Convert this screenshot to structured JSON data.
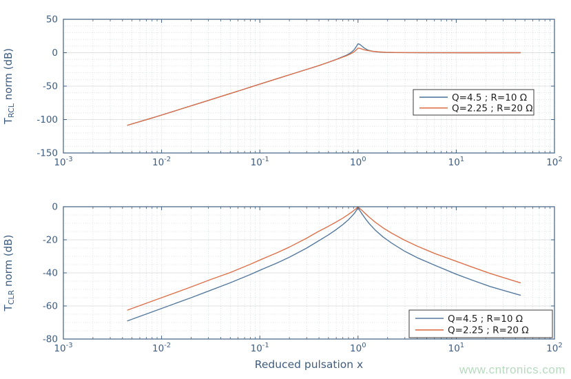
{
  "figure": {
    "watermark": "www.cntronics.com",
    "watermark_color": "#b6dabe"
  },
  "colors": {
    "axis": "#3f5e80",
    "tick_label": "#3d5c80",
    "legend_text": "#1e1e1e",
    "legend_border": "#3a3a3a",
    "grid_major": "rgba(60,60,60,0.16)",
    "grid_minor": "rgba(70,100,130,0.30)",
    "series_blue": "#53799f",
    "series_orange": "#dc7048"
  },
  "chart_data": [
    {
      "type": "line",
      "xscale": "log",
      "xlim": [
        0.001,
        100
      ],
      "ylim": [
        -150,
        50
      ],
      "yticks": [
        50,
        0,
        -50,
        -100,
        -150
      ],
      "ytick_labels": [
        "50",
        "0",
        "-50",
        "-100",
        "-150"
      ],
      "xtick_base": "10",
      "xtick_exponents": [
        "-3",
        "-2",
        "-1",
        "0",
        "1",
        "2"
      ],
      "grid": true,
      "minor_grid": true,
      "ylabel": {
        "pre": "T",
        "sub": "RCL",
        "post": " norm (dB)"
      },
      "xlabel": "",
      "legend": {
        "location": "southeast",
        "entries": [
          "Q=4.5 ; R=10 Ω",
          "Q=2.25 ; R=20 Ω"
        ]
      },
      "series": [
        {
          "name": "Q=4.5 ; R=10 Ω",
          "color": "#53799f",
          "points": [
            [
              0.0045,
              -108.5
            ],
            [
              0.007,
              -100.2
            ],
            [
              0.01,
              -93.3
            ],
            [
              0.015,
              -85.2
            ],
            [
              0.022,
              -77.5
            ],
            [
              0.032,
              -70.0
            ],
            [
              0.047,
              -62.3
            ],
            [
              0.068,
              -54.9
            ],
            [
              0.1,
              -47.0
            ],
            [
              0.15,
              -38.9
            ],
            [
              0.22,
              -31.2
            ],
            [
              0.32,
              -23.7
            ],
            [
              0.42,
              -18.2
            ],
            [
              0.52,
              -13.4
            ],
            [
              0.62,
              -9.2
            ],
            [
              0.7,
              -6.0
            ],
            [
              0.76,
              -3.8
            ],
            [
              0.82,
              -1.2
            ],
            [
              0.87,
              1.6
            ],
            [
              0.92,
              5.2
            ],
            [
              0.96,
              9.2
            ],
            [
              1.0,
              13.3
            ],
            [
              1.04,
              12.6
            ],
            [
              1.09,
              10.2
            ],
            [
              1.16,
              6.9
            ],
            [
              1.26,
              4.0
            ],
            [
              1.4,
              2.2
            ],
            [
              1.6,
              1.1
            ],
            [
              1.9,
              0.5
            ],
            [
              2.4,
              0.2
            ],
            [
              3.2,
              0.1
            ],
            [
              5,
              0
            ],
            [
              10,
              0
            ],
            [
              20,
              0
            ],
            [
              45,
              0
            ]
          ]
        },
        {
          "name": "Q=2.25 ; R=20 Ω",
          "color": "#dc7048",
          "points": [
            [
              0.0045,
              -108.5
            ],
            [
              0.007,
              -100.2
            ],
            [
              0.01,
              -93.3
            ],
            [
              0.015,
              -85.2
            ],
            [
              0.022,
              -77.5
            ],
            [
              0.032,
              -70.0
            ],
            [
              0.047,
              -62.3
            ],
            [
              0.068,
              -54.9
            ],
            [
              0.1,
              -47.0
            ],
            [
              0.15,
              -38.9
            ],
            [
              0.22,
              -31.2
            ],
            [
              0.32,
              -23.7
            ],
            [
              0.42,
              -18.2
            ],
            [
              0.52,
              -13.4
            ],
            [
              0.62,
              -9.5
            ],
            [
              0.7,
              -6.6
            ],
            [
              0.76,
              -4.6
            ],
            [
              0.82,
              -2.4
            ],
            [
              0.87,
              -0.6
            ],
            [
              0.92,
              1.8
            ],
            [
              0.96,
              4.3
            ],
            [
              1.0,
              6.9
            ],
            [
              1.05,
              6.4
            ],
            [
              1.12,
              5.0
            ],
            [
              1.22,
              3.6
            ],
            [
              1.38,
              2.2
            ],
            [
              1.6,
              1.3
            ],
            [
              1.9,
              0.7
            ],
            [
              2.4,
              0.35
            ],
            [
              3.2,
              0.15
            ],
            [
              5,
              0.05
            ],
            [
              10,
              0
            ],
            [
              20,
              0
            ],
            [
              45,
              0
            ]
          ]
        }
      ]
    },
    {
      "type": "line",
      "xscale": "log",
      "xlim": [
        0.001,
        100
      ],
      "ylim": [
        -80,
        0
      ],
      "yticks": [
        0,
        -20,
        -40,
        -60,
        -80
      ],
      "ytick_labels": [
        "0",
        "-20",
        "-40",
        "-60",
        "-80"
      ],
      "xtick_base": "10",
      "xtick_exponents": [
        "-3",
        "-2",
        "-1",
        "0",
        "1",
        "2"
      ],
      "grid": true,
      "minor_grid": true,
      "ylabel": {
        "pre": "T",
        "sub": "CLR",
        "post": " norm (dB)"
      },
      "xlabel": "Reduced pulsation x",
      "legend": {
        "location": "southeast",
        "entries": [
          "Q=4.5 ; R=10 Ω",
          "Q=2.25 ; R=20 Ω"
        ]
      },
      "series": [
        {
          "name": "Q=4.5 ; R=10 Ω",
          "color": "#53799f",
          "points": [
            [
              0.0045,
              -69.0
            ],
            [
              0.01,
              -61.5
            ],
            [
              0.02,
              -55.0
            ],
            [
              0.0316,
              -50.5
            ],
            [
              0.05,
              -46.0
            ],
            [
              0.08,
              -41.0
            ],
            [
              0.104,
              -38.0
            ],
            [
              0.15,
              -34.0
            ],
            [
              0.2,
              -30.5
            ],
            [
              0.3,
              -25.0
            ],
            [
              0.388,
              -21.0
            ],
            [
              0.5,
              -17.0
            ],
            [
              0.6,
              -13.8
            ],
            [
              0.7,
              -10.8
            ],
            [
              0.8,
              -7.8
            ],
            [
              0.9,
              -4.6
            ],
            [
              0.95,
              -2.8
            ],
            [
              1.0,
              -0.2
            ],
            [
              1.05,
              -2.6
            ],
            [
              1.1,
              -4.4
            ],
            [
              1.2,
              -7.6
            ],
            [
              1.3,
              -10.2
            ],
            [
              1.5,
              -14.2
            ],
            [
              1.8,
              -18.3
            ],
            [
              2.2,
              -22.0
            ],
            [
              3,
              -27.0
            ],
            [
              4,
              -30.8
            ],
            [
              6,
              -35.3
            ],
            [
              10,
              -40.8
            ],
            [
              15,
              -44.7
            ],
            [
              22,
              -48.2
            ],
            [
              32,
              -51.0
            ],
            [
              45,
              -53.5
            ]
          ]
        },
        {
          "name": "Q=2.25 ; R=20 Ω",
          "color": "#dc7048",
          "points": [
            [
              0.0045,
              -62.5
            ],
            [
              0.01,
              -55.0
            ],
            [
              0.02,
              -48.5
            ],
            [
              0.0316,
              -44.0
            ],
            [
              0.05,
              -39.8
            ],
            [
              0.08,
              -34.8
            ],
            [
              0.104,
              -31.8
            ],
            [
              0.15,
              -27.8
            ],
            [
              0.2,
              -24.4
            ],
            [
              0.3,
              -19.0
            ],
            [
              0.388,
              -15.2
            ],
            [
              0.5,
              -11.8
            ],
            [
              0.6,
              -9.2
            ],
            [
              0.7,
              -6.9
            ],
            [
              0.8,
              -4.6
            ],
            [
              0.9,
              -2.4
            ],
            [
              0.95,
              -1.3
            ],
            [
              1.0,
              0.0
            ],
            [
              1.05,
              -1.2
            ],
            [
              1.1,
              -2.3
            ],
            [
              1.2,
              -4.4
            ],
            [
              1.3,
              -6.3
            ],
            [
              1.5,
              -9.4
            ],
            [
              1.8,
              -12.8
            ],
            [
              2.2,
              -16.0
            ],
            [
              3,
              -20.3
            ],
            [
              4,
              -23.8
            ],
            [
              6,
              -28.2
            ],
            [
              10,
              -33.0
            ],
            [
              15,
              -36.8
            ],
            [
              22,
              -40.3
            ],
            [
              32,
              -43.3
            ],
            [
              45,
              -46.0
            ]
          ]
        }
      ]
    }
  ]
}
